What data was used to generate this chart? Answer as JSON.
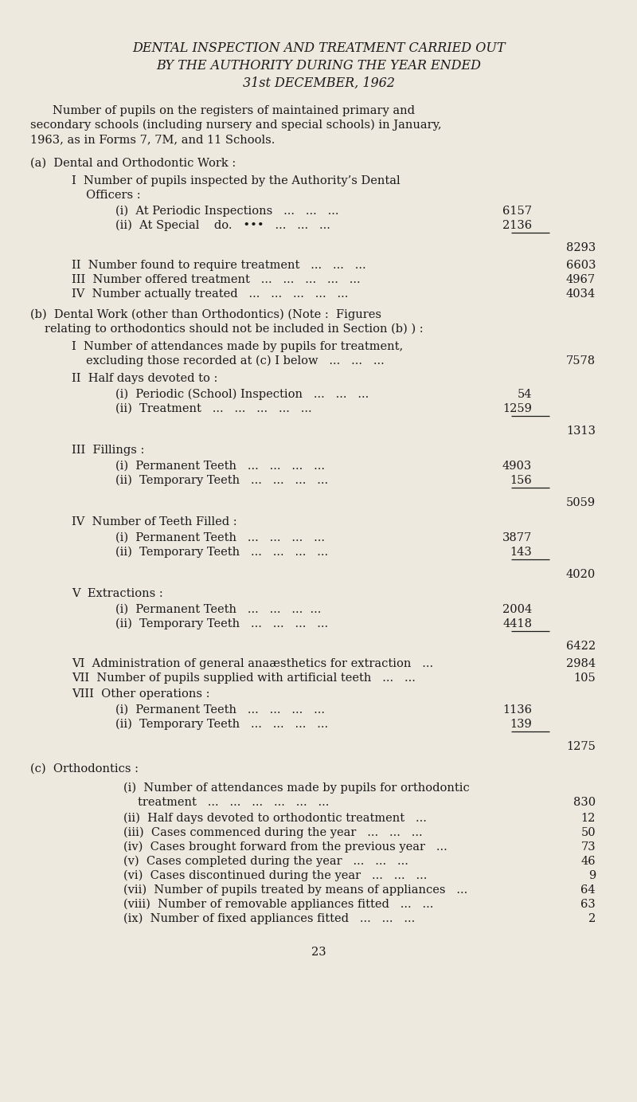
{
  "bg_color": "#ede9df",
  "text_color": "#1a1a1a",
  "title_line1": "DENTAL INSPECTION AND TREATMENT CARRIED OUT",
  "title_line2": "BY THE AUTHORITY DURING THE YEAR ENDED",
  "title_line3": "31st DECEMBER, 1962",
  "page_number": "23"
}
